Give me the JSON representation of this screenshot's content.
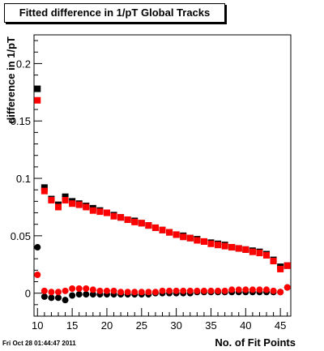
{
  "chart_data": {
    "type": "scatter",
    "title": "Fitted difference in 1/pT  Global Tracks",
    "xlabel": "No. of Fit Points",
    "ylabel": "difference in 1/pT",
    "xlim": [
      9.5,
      46.5
    ],
    "ylim": [
      -0.02,
      0.225
    ],
    "x_ticks": [
      10,
      15,
      20,
      25,
      30,
      35,
      40,
      45
    ],
    "x_tick_labels": [
      "10",
      "15",
      "20",
      "25",
      "30",
      "35",
      "40",
      "45"
    ],
    "y_ticks": [
      0,
      0.05,
      0.1,
      0.15,
      0.2
    ],
    "y_tick_labels": [
      "0",
      "0.05",
      "0.1",
      "0.15",
      "0.2"
    ],
    "grid": false,
    "series": [
      {
        "color": "#000000",
        "marker": "square",
        "x": [
          10,
          11,
          12,
          13,
          14,
          15,
          16,
          17,
          18,
          19,
          20,
          21,
          22,
          23,
          24,
          25,
          26,
          27,
          28,
          29,
          30,
          31,
          32,
          33,
          34,
          35,
          36,
          37,
          38,
          39,
          40,
          41,
          42,
          43,
          44,
          45,
          46
        ],
        "y": [
          0.178,
          0.092,
          0.082,
          0.077,
          0.084,
          0.08,
          0.078,
          0.076,
          0.074,
          0.072,
          0.07,
          0.068,
          0.066,
          0.064,
          0.063,
          0.061,
          0.059,
          0.057,
          0.055,
          0.053,
          0.051,
          0.05,
          0.048,
          0.047,
          0.045,
          0.044,
          0.043,
          0.042,
          0.04,
          0.039,
          0.038,
          0.037,
          0.036,
          0.034,
          0.029,
          0.023,
          0.024
        ]
      },
      {
        "color": "#ff0000",
        "marker": "square",
        "x": [
          10,
          11,
          12,
          13,
          14,
          15,
          16,
          17,
          18,
          19,
          20,
          21,
          22,
          23,
          24,
          25,
          26,
          27,
          28,
          29,
          30,
          31,
          32,
          33,
          34,
          35,
          36,
          37,
          38,
          39,
          40,
          41,
          42,
          43,
          44,
          45,
          46
        ],
        "y": [
          0.168,
          0.089,
          0.081,
          0.075,
          0.081,
          0.078,
          0.077,
          0.075,
          0.072,
          0.071,
          0.07,
          0.067,
          0.066,
          0.064,
          0.062,
          0.061,
          0.059,
          0.057,
          0.055,
          0.053,
          0.051,
          0.049,
          0.048,
          0.046,
          0.045,
          0.043,
          0.042,
          0.041,
          0.04,
          0.039,
          0.038,
          0.036,
          0.035,
          0.033,
          0.028,
          0.021,
          0.024
        ]
      },
      {
        "color": "#000000",
        "marker": "circle",
        "x": [
          10,
          11,
          12,
          13,
          14,
          15,
          16,
          17,
          18,
          19,
          20,
          21,
          22,
          23,
          24,
          25,
          26,
          27,
          28,
          29,
          30,
          31,
          32,
          33,
          34,
          35,
          36,
          37,
          38,
          39,
          40,
          41,
          42,
          43,
          44,
          45,
          46
        ],
        "y": [
          0.04,
          -0.003,
          -0.004,
          -0.004,
          -0.006,
          -0.002,
          -0.001,
          -0.001,
          -0.001,
          -0.001,
          -0.001,
          -0.001,
          -0.001,
          -0.001,
          -0.001,
          -0.001,
          -0.001,
          0.0,
          0.0,
          0.0,
          0.0,
          0.0,
          0.0,
          0.001,
          0.001,
          0.001,
          0.001,
          0.001,
          0.001,
          0.001,
          0.001,
          0.001,
          0.001,
          0.001,
          0.001,
          0.001,
          0.005
        ]
      },
      {
        "color": "#ff0000",
        "marker": "circle",
        "x": [
          10,
          11,
          12,
          13,
          14,
          15,
          16,
          17,
          18,
          19,
          20,
          21,
          22,
          23,
          24,
          25,
          26,
          27,
          28,
          29,
          30,
          31,
          32,
          33,
          34,
          35,
          36,
          37,
          38,
          39,
          40,
          41,
          42,
          43,
          44,
          45,
          46
        ],
        "y": [
          0.016,
          0.002,
          0.001,
          0.001,
          0.002,
          0.004,
          0.004,
          0.004,
          0.003,
          0.002,
          0.002,
          0.002,
          0.001,
          0.001,
          0.001,
          0.001,
          0.001,
          0.001,
          0.002,
          0.002,
          0.002,
          0.002,
          0.002,
          0.002,
          0.002,
          0.002,
          0.002,
          0.002,
          0.003,
          0.003,
          0.003,
          0.003,
          0.003,
          0.003,
          0.002,
          0.001,
          0.005
        ]
      }
    ]
  },
  "footer": {
    "timestamp": "Fri Oct 28 01:44:47 2011"
  }
}
